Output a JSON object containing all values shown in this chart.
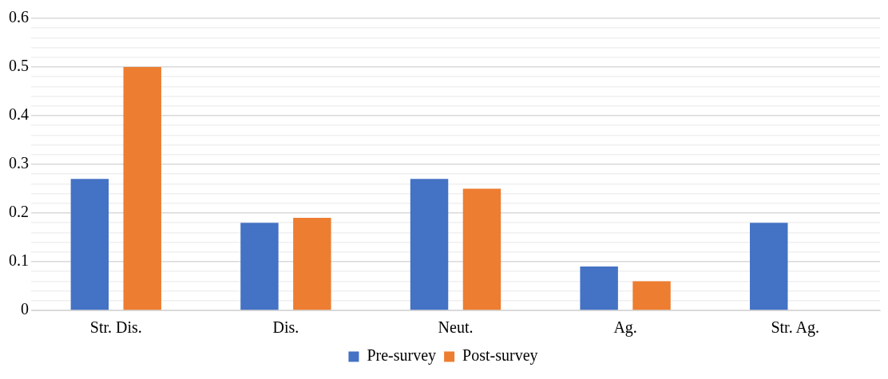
{
  "chart_data": {
    "type": "bar",
    "categories": [
      "Str. Dis.",
      "Dis.",
      "Neut.",
      "Ag.",
      "Str. Ag."
    ],
    "series": [
      {
        "name": "Pre-survey",
        "color": "#4472c4",
        "values": [
          0.27,
          0.18,
          0.27,
          0.09,
          0.18
        ]
      },
      {
        "name": "Post-survey",
        "color": "#ed7d31",
        "values": [
          0.5,
          0.19,
          0.25,
          0.06,
          0
        ]
      }
    ],
    "ylim": [
      0,
      0.6
    ],
    "yticks": [
      0,
      {
        "value": 0.02,
        "label": null
      },
      {
        "value": 0.04,
        "label": null
      },
      {
        "value": 0.06,
        "label": null
      },
      {
        "value": 0.08,
        "label": null
      },
      0.1,
      {
        "value": 0.12,
        "label": null
      },
      {
        "value": 0.14,
        "label": null
      },
      {
        "value": 0.16,
        "label": null
      },
      {
        "value": 0.18,
        "label": null
      },
      0.2,
      {
        "value": 0.22,
        "label": null
      },
      {
        "value": 0.24,
        "label": null
      },
      {
        "value": 0.26,
        "label": null
      },
      {
        "value": 0.28,
        "label": null
      },
      0.3,
      {
        "value": 0.32,
        "label": null
      },
      {
        "value": 0.34,
        "label": null
      },
      {
        "value": 0.36,
        "label": null
      },
      {
        "value": 0.38,
        "label": null
      },
      0.4,
      {
        "value": 0.42,
        "label": null
      },
      {
        "value": 0.44,
        "label": null
      },
      {
        "value": 0.46,
        "label": null
      },
      {
        "value": 0.48,
        "label": null
      },
      0.5,
      {
        "value": 0.52,
        "label": null
      },
      {
        "value": 0.54,
        "label": null
      },
      {
        "value": 0.56,
        "label": null
      },
      {
        "value": 0.58,
        "label": null
      },
      0.6
    ],
    "grid": "y",
    "legend": "bottom"
  }
}
